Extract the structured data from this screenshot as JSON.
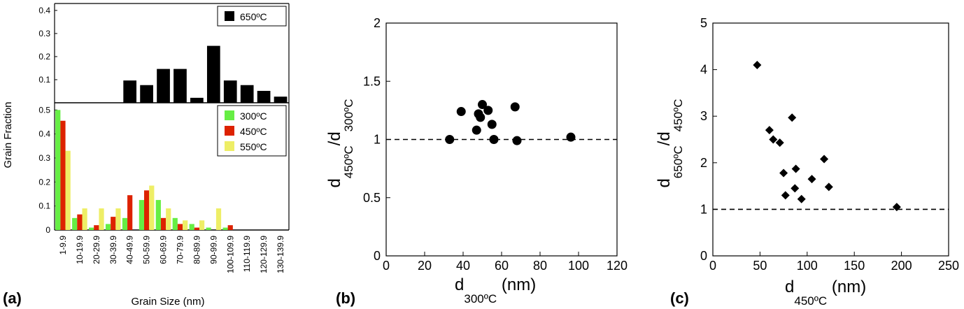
{
  "panel_labels": {
    "a": "(a)",
    "b": "(b)",
    "c": "(c)"
  },
  "colors": {
    "c300": "#66ee44",
    "c450": "#dd2200",
    "c550": "#eeee66",
    "c650": "#000000"
  },
  "chart_data": [
    {
      "type": "bar",
      "panel": "(a) top",
      "categories": [
        "1-9.9",
        "10-19.9",
        "20-29.9",
        "30-39.9",
        "40-49.9",
        "50-59.9",
        "60-69.9",
        "70-79.9",
        "80-89.9",
        "90-99.9",
        "100-109.9",
        "110-119.9",
        "120-129.9",
        "130-139.9"
      ],
      "series": [
        {
          "name": "650ºC",
          "values": [
            0,
            0,
            0,
            0,
            0.095,
            0.075,
            0.145,
            0.145,
            0.02,
            0.245,
            0.095,
            0.075,
            0.05,
            0.025
          ]
        }
      ],
      "ylim": [
        0,
        0.43
      ],
      "yticks": [
        0.1,
        0.2,
        0.3,
        0.4
      ],
      "ytick_labels": [
        "0.1",
        "0.2",
        "0.3",
        "0.4"
      ],
      "legend_position": "top-right"
    },
    {
      "type": "bar",
      "panel": "(a) bottom",
      "categories": [
        "1-9.9",
        "10-19.9",
        "20-29.9",
        "30-39.9",
        "40-49.9",
        "50-59.9",
        "60-69.9",
        "70-79.9",
        "80-89.9",
        "90-99.9",
        "100-109.9",
        "110-119.9",
        "120-129.9",
        "130-139.9"
      ],
      "series": [
        {
          "name": "300ºC",
          "values": [
            0.5,
            0.05,
            0.01,
            0.025,
            0.05,
            0.125,
            0.125,
            0.05,
            0.025,
            0.01,
            0.01,
            0,
            0,
            0
          ]
        },
        {
          "name": "450ºC",
          "values": [
            0.455,
            0.065,
            0.02,
            0.055,
            0.145,
            0.165,
            0.05,
            0.025,
            0.01,
            0,
            0.02,
            0,
            0,
            0
          ]
        },
        {
          "name": "550ºC",
          "values": [
            0.33,
            0.09,
            0.09,
            0.09,
            0,
            0.185,
            0.09,
            0.04,
            0.04,
            0.09,
            0,
            0,
            0,
            0
          ]
        }
      ],
      "ylim": [
        0,
        0.53
      ],
      "yticks": [
        0,
        0.1,
        0.2,
        0.3,
        0.4,
        0.5
      ],
      "ytick_labels": [
        "0",
        "0.1",
        "0.2",
        "0.3",
        "0.4",
        "0.5"
      ],
      "ylabel": "Grain Fraction",
      "xlabel": "Grain Size (nm)",
      "legend_position": "top-right"
    },
    {
      "type": "scatter",
      "panel": "(b)",
      "xlabel_main": "d",
      "xlabel_sub": "300ºC",
      "xlabel_unit": " (nm)",
      "ylabel_main1": "d",
      "ylabel_sub1": "450ºC",
      "ylabel_mid": "/d",
      "ylabel_sub2": "300ºC",
      "xlim": [
        0,
        120
      ],
      "ylim": [
        0,
        2
      ],
      "xticks": [
        0,
        20,
        40,
        60,
        80,
        100,
        120
      ],
      "yticks": [
        0,
        0.5,
        1,
        1.5,
        2
      ],
      "xtick_labels": [
        "0",
        "20",
        "40",
        "60",
        "80",
        "100",
        "120"
      ],
      "ytick_labels": [
        "0",
        "0.5",
        "1",
        "1.5",
        "2"
      ],
      "reference_line_y": 1,
      "marker": "circle",
      "points": [
        [
          33,
          1.0
        ],
        [
          39,
          1.24
        ],
        [
          47,
          1.08
        ],
        [
          48,
          1.22
        ],
        [
          49,
          1.19
        ],
        [
          50,
          1.3
        ],
        [
          53,
          1.25
        ],
        [
          55,
          1.13
        ],
        [
          56,
          1.0
        ],
        [
          67,
          1.28
        ],
        [
          68,
          0.99
        ],
        [
          96,
          1.02
        ]
      ]
    },
    {
      "type": "scatter",
      "panel": "(c)",
      "xlabel_main": "d",
      "xlabel_sub": "450ºC",
      "xlabel_unit": " (nm)",
      "ylabel_main1": "d",
      "ylabel_sub1": "650ºC",
      "ylabel_mid": "/d",
      "ylabel_sub2": "450ºC",
      "xlim": [
        0,
        250
      ],
      "ylim": [
        0,
        5
      ],
      "xticks": [
        0,
        50,
        100,
        150,
        200,
        250
      ],
      "yticks": [
        0,
        1,
        2,
        3,
        4,
        5
      ],
      "xtick_labels": [
        "0",
        "50",
        "100",
        "150",
        "200",
        "250"
      ],
      "ytick_labels": [
        "0",
        "1",
        "2",
        "3",
        "4",
        "5"
      ],
      "reference_line_y": 1,
      "marker": "diamond",
      "points": [
        [
          47,
          4.1
        ],
        [
          60,
          2.7
        ],
        [
          64,
          2.5
        ],
        [
          71,
          2.43
        ],
        [
          75,
          1.78
        ],
        [
          77,
          1.3
        ],
        [
          84,
          2.97
        ],
        [
          88,
          1.87
        ],
        [
          87,
          1.45
        ],
        [
          94,
          1.22
        ],
        [
          105,
          1.65
        ],
        [
          118,
          2.08
        ],
        [
          123,
          1.48
        ],
        [
          195,
          1.05
        ]
      ]
    }
  ]
}
